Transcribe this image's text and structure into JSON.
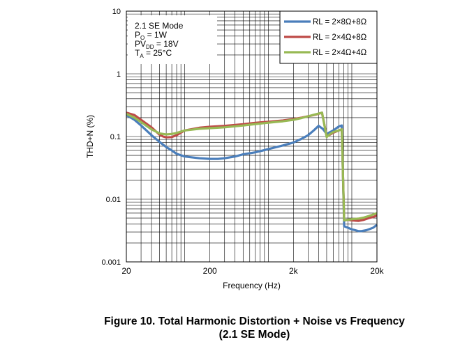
{
  "chart_data": {
    "type": "line",
    "title": "",
    "xlabel": "Frequency (Hz)",
    "ylabel": "THD+N (%)",
    "x_scale": "log",
    "y_scale": "log",
    "xlim": [
      20,
      20000
    ],
    "ylim": [
      0.001,
      10
    ],
    "grid": true,
    "legend_position": "top-right",
    "x_ticks": [
      {
        "value": 20,
        "label": "20"
      },
      {
        "value": 200,
        "label": "200"
      },
      {
        "value": 2000,
        "label": "2k"
      },
      {
        "value": 20000,
        "label": "20k"
      }
    ],
    "y_ticks": [
      {
        "value": 0.001,
        "label": "0.001"
      },
      {
        "value": 0.01,
        "label": "0.01"
      },
      {
        "value": 0.1,
        "label": "0.1"
      },
      {
        "value": 1,
        "label": "1"
      },
      {
        "value": 10,
        "label": "10"
      }
    ],
    "annotation": {
      "lines": [
        {
          "main": "2.1 SE Mode",
          "sub": "",
          "tail": ""
        },
        {
          "main": "P",
          "sub": "O",
          "tail": " = 1W"
        },
        {
          "main": "PV",
          "sub": "DD",
          "tail": " = 18V"
        },
        {
          "main": "T",
          "sub": "A",
          "tail": " = 25°C"
        }
      ]
    },
    "series": [
      {
        "name": "RL = 2×8Ω+8Ω",
        "color": "#4a7ebb",
        "points": [
          [
            20,
            0.22
          ],
          [
            25,
            0.185
          ],
          [
            30,
            0.15
          ],
          [
            40,
            0.105
          ],
          [
            50,
            0.082
          ],
          [
            60,
            0.068
          ],
          [
            70,
            0.06
          ],
          [
            80,
            0.053
          ],
          [
            100,
            0.048
          ],
          [
            150,
            0.045
          ],
          [
            200,
            0.044
          ],
          [
            250,
            0.044
          ],
          [
            300,
            0.045
          ],
          [
            400,
            0.048
          ],
          [
            500,
            0.052
          ],
          [
            700,
            0.056
          ],
          [
            1000,
            0.063
          ],
          [
            1500,
            0.072
          ],
          [
            2000,
            0.08
          ],
          [
            2500,
            0.092
          ],
          [
            3000,
            0.105
          ],
          [
            3500,
            0.125
          ],
          [
            4000,
            0.148
          ],
          [
            4500,
            0.132
          ],
          [
            5000,
            0.11
          ],
          [
            6000,
            0.125
          ],
          [
            7000,
            0.145
          ],
          [
            7600,
            0.15
          ],
          [
            8100,
            0.0037
          ],
          [
            9000,
            0.0035
          ],
          [
            10000,
            0.0033
          ],
          [
            11000,
            0.0032
          ],
          [
            12000,
            0.0031
          ],
          [
            13000,
            0.0031
          ],
          [
            15000,
            0.0032
          ],
          [
            18000,
            0.0035
          ],
          [
            20000,
            0.0039
          ]
        ]
      },
      {
        "name": "RL = 2×4Ω+8Ω",
        "color": "#be4b48",
        "points": [
          [
            20,
            0.24
          ],
          [
            25,
            0.22
          ],
          [
            30,
            0.185
          ],
          [
            40,
            0.14
          ],
          [
            50,
            0.107
          ],
          [
            55,
            0.1
          ],
          [
            60,
            0.097
          ],
          [
            70,
            0.098
          ],
          [
            80,
            0.105
          ],
          [
            100,
            0.125
          ],
          [
            150,
            0.138
          ],
          [
            200,
            0.143
          ],
          [
            300,
            0.148
          ],
          [
            500,
            0.157
          ],
          [
            700,
            0.165
          ],
          [
            1000,
            0.172
          ],
          [
            1500,
            0.18
          ],
          [
            2000,
            0.19
          ],
          [
            2500,
            0.2
          ],
          [
            3000,
            0.21
          ],
          [
            3500,
            0.22
          ],
          [
            4000,
            0.23
          ],
          [
            4400,
            0.24
          ],
          [
            5000,
            0.1
          ],
          [
            6000,
            0.115
          ],
          [
            7000,
            0.125
          ],
          [
            7600,
            0.13
          ],
          [
            8100,
            0.0046
          ],
          [
            9000,
            0.0047
          ],
          [
            10000,
            0.0046
          ],
          [
            12000,
            0.0045
          ],
          [
            14000,
            0.0047
          ],
          [
            16000,
            0.005
          ],
          [
            18000,
            0.0052
          ],
          [
            20000,
            0.0055
          ]
        ]
      },
      {
        "name": "RL = 2×4Ω+4Ω",
        "color": "#98b954",
        "points": [
          [
            20,
            0.23
          ],
          [
            25,
            0.2
          ],
          [
            30,
            0.17
          ],
          [
            40,
            0.13
          ],
          [
            50,
            0.112
          ],
          [
            60,
            0.108
          ],
          [
            70,
            0.11
          ],
          [
            80,
            0.114
          ],
          [
            100,
            0.125
          ],
          [
            150,
            0.133
          ],
          [
            200,
            0.136
          ],
          [
            300,
            0.14
          ],
          [
            500,
            0.15
          ],
          [
            700,
            0.158
          ],
          [
            1000,
            0.166
          ],
          [
            1500,
            0.175
          ],
          [
            2000,
            0.185
          ],
          [
            2500,
            0.197
          ],
          [
            3000,
            0.21
          ],
          [
            3500,
            0.222
          ],
          [
            4000,
            0.232
          ],
          [
            4400,
            0.24
          ],
          [
            5000,
            0.098
          ],
          [
            5500,
            0.11
          ],
          [
            6000,
            0.118
          ],
          [
            7000,
            0.125
          ],
          [
            7600,
            0.13
          ],
          [
            8100,
            0.0046
          ],
          [
            9000,
            0.0047
          ],
          [
            10000,
            0.0048
          ],
          [
            12000,
            0.0049
          ],
          [
            14000,
            0.0051
          ],
          [
            16000,
            0.0054
          ],
          [
            18000,
            0.0057
          ],
          [
            20000,
            0.006
          ]
        ]
      }
    ]
  },
  "caption": {
    "line1": "Figure 10. Total Harmonic Distortion + Noise vs Frequency",
    "line2": "(2.1 SE Mode)"
  }
}
